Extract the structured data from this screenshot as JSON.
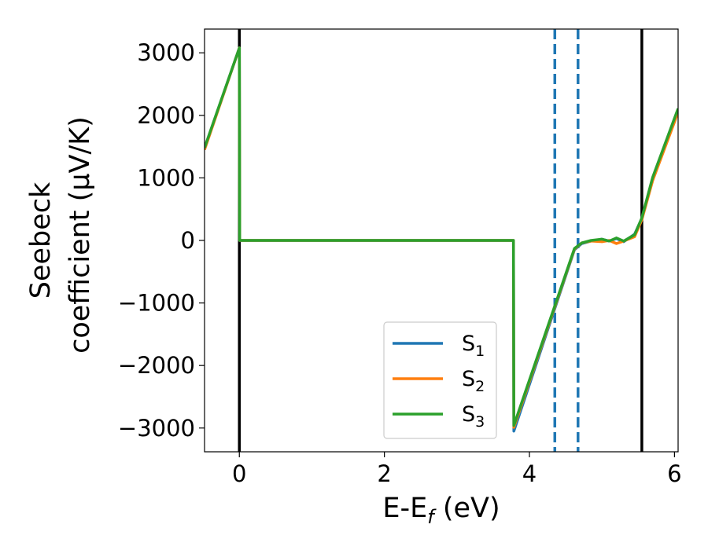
{
  "chart_data": {
    "type": "line",
    "xlabel": "E-E",
    "xlabel_sub": "f",
    "xlabel_unit": " (eV)",
    "ylabel_line1": "Seebeck",
    "ylabel_line2": "coefficient  (μV/K)",
    "xlim": [
      -0.48,
      6.05
    ],
    "ylim": [
      -3380,
      3380
    ],
    "xticks": [
      0,
      2,
      4,
      6
    ],
    "xtick_labels": [
      "0",
      "2",
      "4",
      "6"
    ],
    "yticks": [
      3000,
      2000,
      1000,
      0,
      -1000,
      -2000,
      -3000
    ],
    "ytick_labels": [
      "3000",
      "2000",
      "1000",
      "0",
      "−1000",
      "−2000",
      "−3000"
    ],
    "vlines_solid": [
      0.0,
      5.55
    ],
    "vlines_dashed": [
      4.35,
      4.67
    ],
    "legend_position": "lower-right",
    "series": [
      {
        "name": "S",
        "sub": "1",
        "color": "#1f77b4",
        "x": [
          -0.48,
          0.0,
          0.005,
          3.78,
          3.785,
          4.62,
          4.72,
          4.85,
          5.0,
          5.1,
          5.2,
          5.3,
          5.45,
          5.55,
          5.7,
          6.05
        ],
        "y": [
          1470,
          3080,
          0,
          0,
          -3050,
          -150,
          -50,
          -10,
          20,
          -10,
          30,
          -20,
          100,
          350,
          1000,
          2100
        ]
      },
      {
        "name": "S",
        "sub": "2",
        "color": "#ff7f0e",
        "x": [
          -0.48,
          0.0,
          0.005,
          3.78,
          3.785,
          4.62,
          4.72,
          4.85,
          5.0,
          5.1,
          5.2,
          5.3,
          5.45,
          5.55,
          5.7,
          6.05
        ],
        "y": [
          1450,
          3080,
          0,
          0,
          -2990,
          -140,
          -40,
          -10,
          -20,
          0,
          -50,
          -10,
          60,
          330,
          960,
          2050
        ]
      },
      {
        "name": "S",
        "sub": "3",
        "color": "#2ca02c",
        "x": [
          -0.48,
          0.0,
          0.005,
          3.78,
          3.785,
          4.62,
          4.72,
          4.85,
          5.0,
          5.1,
          5.2,
          5.3,
          5.45,
          5.55,
          5.7,
          6.05
        ],
        "y": [
          1480,
          3080,
          0,
          0,
          -2960,
          -130,
          -40,
          0,
          20,
          -10,
          40,
          -10,
          90,
          360,
          1010,
          2110
        ]
      }
    ]
  }
}
